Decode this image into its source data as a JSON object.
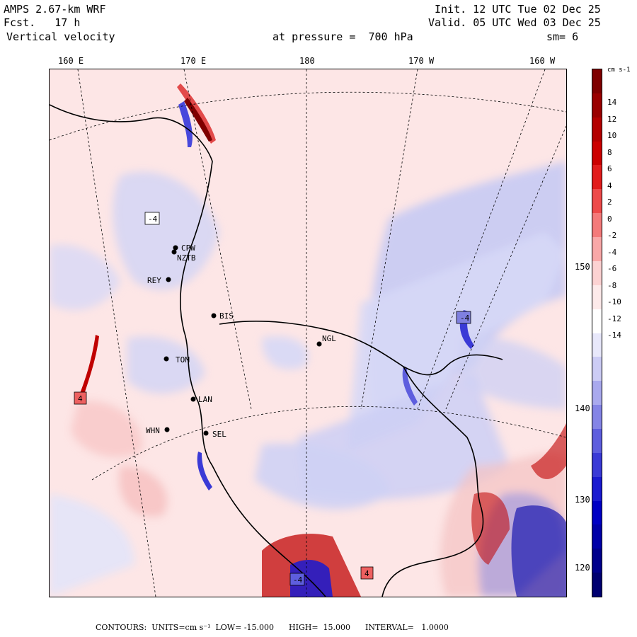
{
  "header": {
    "model": "AMPS 2.67-km WRF",
    "forecast": "Fcst.   17 h",
    "variable": "Vertical velocity",
    "init": "Init. 12 UTC Tue 02 Dec 25",
    "valid": "Valid. 05 UTC Wed 03 Dec 25",
    "level": "at pressure =  700 hPa",
    "smoothing": "sm= 6"
  },
  "lon_labels": [
    "160 E",
    "170 E",
    "180",
    "170 W",
    "160 W"
  ],
  "lat_labels": [
    "150 W",
    "140 W",
    "130 W",
    "120 W"
  ],
  "stations": [
    {
      "id": "CPW"
    },
    {
      "id": "NZTB"
    },
    {
      "id": "REY"
    },
    {
      "id": "BIS"
    },
    {
      "id": "NGL"
    },
    {
      "id": "TOM"
    },
    {
      "id": "LAN"
    },
    {
      "id": "WHN"
    },
    {
      "id": "SEL"
    }
  ],
  "extrema_boxes": [
    {
      "label": "-4",
      "type": "min"
    },
    {
      "label": "-4",
      "type": "min"
    },
    {
      "label": "4",
      "type": "max"
    },
    {
      "label": "4",
      "type": "max"
    },
    {
      "label": "-4",
      "type": "min"
    }
  ],
  "colorbar": {
    "unit": "cm s-1",
    "ticks": [
      "14",
      "12",
      "10",
      "8",
      "6",
      "4",
      "2",
      "0",
      "-2",
      "-4",
      "-6",
      "-8",
      "-10",
      "-12",
      "-14"
    ],
    "colors": [
      "#7f0000",
      "#9a0000",
      "#b40000",
      "#cc0000",
      "#e21c1c",
      "#ee4a4a",
      "#f47a7a",
      "#f9a8a8",
      "#fcd2d2",
      "#fdeaea",
      "#ffffff",
      "#e8e8fb",
      "#ccccf5",
      "#a9a9ee",
      "#8484e6",
      "#5e5ede",
      "#3a3ad6",
      "#1a1ad0",
      "#0000c4",
      "#0000a8",
      "#00008c",
      "#000070"
    ]
  },
  "footer": {
    "text": "CONTOURS:  UNITS=cm s⁻¹  LOW= -15.000      HIGH=  15.000      INTERVAL=   1.0000"
  }
}
